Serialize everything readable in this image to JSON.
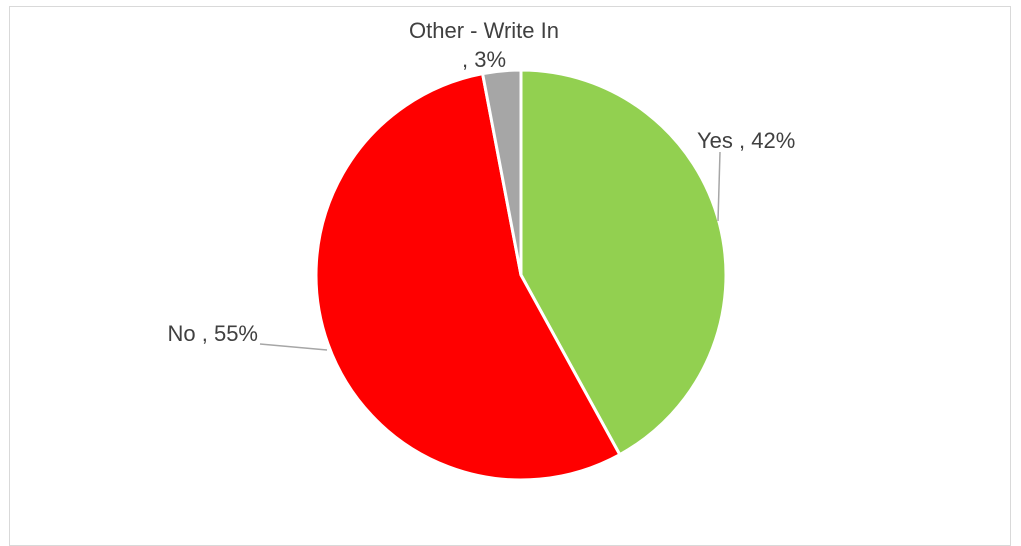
{
  "chart_data": {
    "type": "pie",
    "title": "",
    "categories": [
      "Yes",
      "No",
      "Other - Write In"
    ],
    "values": [
      42,
      55,
      3
    ],
    "unit": "%",
    "colors": [
      "#92d050",
      "#ff0000",
      "#a6a6a6"
    ],
    "legend": "none",
    "data_labels": [
      {
        "lines": [
          "Yes , 42%"
        ]
      },
      {
        "lines": [
          "No , 55%"
        ]
      },
      {
        "lines": [
          "Other - Write In",
          ", 3%"
        ]
      }
    ]
  }
}
